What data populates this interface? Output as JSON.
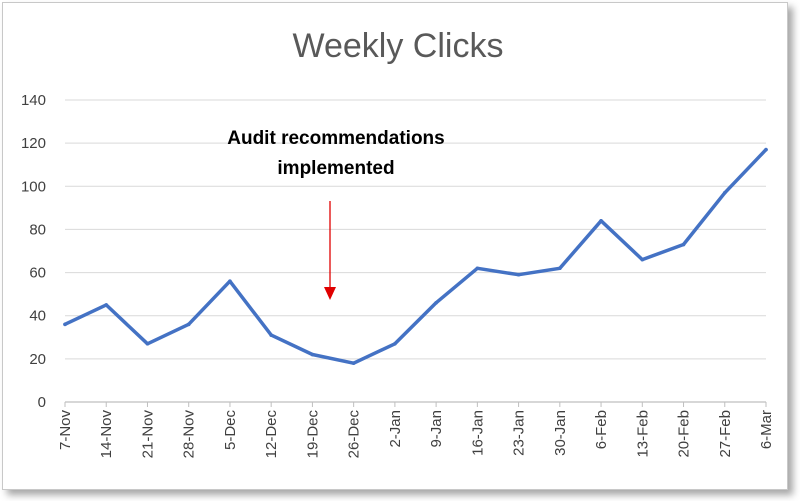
{
  "chart_data": {
    "type": "line",
    "title": "Weekly Clicks",
    "xlabel": "",
    "ylabel": "",
    "categories": [
      "7-Nov",
      "14-Nov",
      "21-Nov",
      "28-Nov",
      "5-Dec",
      "12-Dec",
      "19-Dec",
      "26-Dec",
      "2-Jan",
      "9-Jan",
      "16-Jan",
      "23-Jan",
      "30-Jan",
      "6-Feb",
      "13-Feb",
      "20-Feb",
      "27-Feb",
      "6-Mar"
    ],
    "series": [
      {
        "values": [
          36,
          45,
          27,
          36,
          56,
          31,
          22,
          18,
          27,
          46,
          62,
          59,
          62,
          84,
          66,
          73,
          97,
          117
        ]
      }
    ],
    "ylim": [
      0,
      140
    ],
    "yticks": [
      0,
      20,
      40,
      60,
      80,
      100,
      120,
      140
    ],
    "grid": "horizontal",
    "legend": "none",
    "colors": {
      "line": "#4472C4",
      "grid": "#d9d9d9",
      "arrow": "#e00000"
    },
    "annotation": {
      "lines": [
        "Audit recommendations",
        "implemented"
      ],
      "points_to": "19-Dec"
    }
  }
}
